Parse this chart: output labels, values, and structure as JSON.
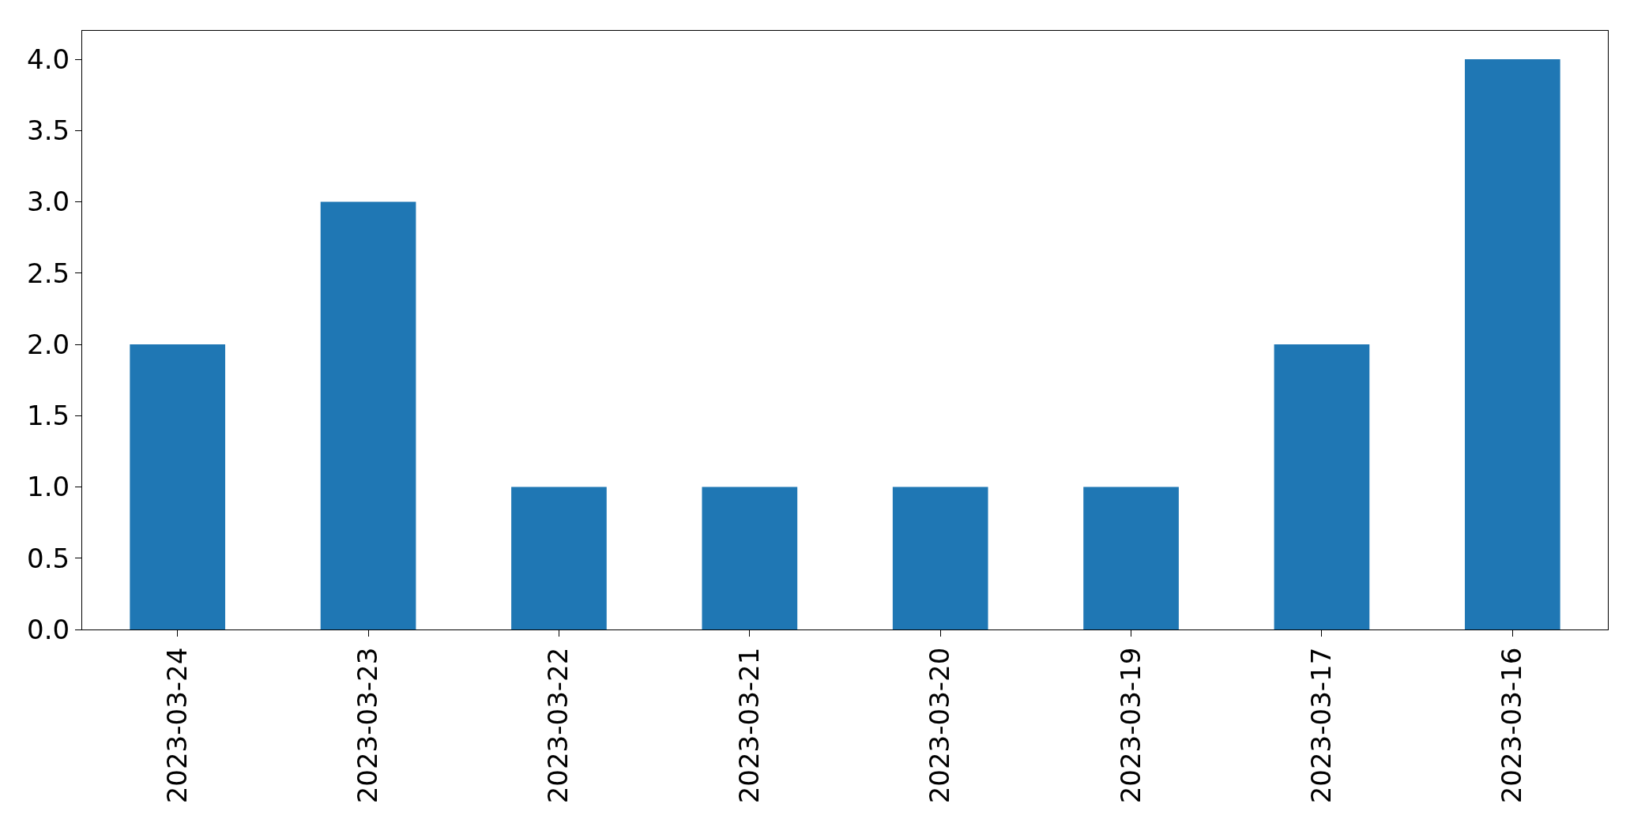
{
  "chart_data": {
    "type": "bar",
    "categories": [
      "2023-03-24",
      "2023-03-23",
      "2023-03-22",
      "2023-03-21",
      "2023-03-20",
      "2023-03-19",
      "2023-03-17",
      "2023-03-16"
    ],
    "values": [
      2,
      3,
      1,
      1,
      1,
      1,
      2,
      4
    ],
    "color": "#1f77b4",
    "ylim": [
      0,
      4.2
    ],
    "yticks": [
      {
        "value": 0,
        "label": "0.0"
      },
      {
        "value": 0.5,
        "label": "0.5"
      },
      {
        "value": 1,
        "label": "1.0"
      },
      {
        "value": 1.5,
        "label": "1.5"
      },
      {
        "value": 2,
        "label": "2.0"
      },
      {
        "value": 2.5,
        "label": "2.5"
      },
      {
        "value": 3,
        "label": "3.0"
      },
      {
        "value": 3.5,
        "label": "3.5"
      },
      {
        "value": 4,
        "label": "4.0"
      }
    ],
    "grid": false
  }
}
